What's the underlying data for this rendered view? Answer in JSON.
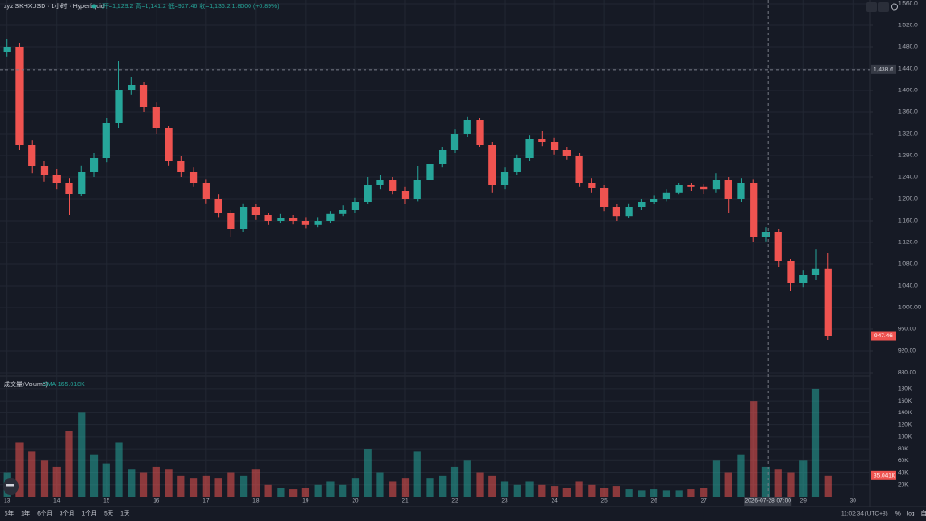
{
  "header": {
    "symbol": "xyz:SKHXUSD · 1小时 · Hyperliquid",
    "ohlc": "开=1,129.2 高=1,141.2 低=927.46 收=1,136.2 1.8000 (+0.89%)"
  },
  "toolbar": {
    "ranges": [
      "5年",
      "1年",
      "6个月",
      "3个月",
      "1个月",
      "5天",
      "1天"
    ],
    "clock": "11:02:34 (UTC+8)",
    "buttons": [
      "%",
      "log",
      "自动"
    ]
  },
  "chart_data": [
    {
      "type": "candlestick",
      "up_color": "#26a69a",
      "down_color": "#ef5350",
      "x": [
        13,
        13.25,
        13.5,
        13.75,
        14,
        14.25,
        14.5,
        14.75,
        15,
        15.25,
        15.5,
        15.75,
        16,
        16.25,
        16.5,
        16.75,
        17,
        17.25,
        17.5,
        17.75,
        18,
        18.25,
        18.5,
        18.75,
        19,
        19.25,
        19.5,
        19.75,
        20,
        20.25,
        20.5,
        20.75,
        21,
        21.25,
        21.5,
        21.75,
        22,
        22.25,
        22.5,
        22.75,
        23,
        23.25,
        23.5,
        23.75,
        24,
        24.25,
        24.5,
        24.75,
        25,
        25.25,
        25.5,
        25.75,
        26,
        26.25,
        26.5,
        26.75,
        27,
        27.25,
        27.5,
        27.75,
        28,
        28.25,
        28.5,
        28.75,
        29,
        29.25,
        29.5
      ],
      "open": [
        1470,
        1480,
        1300,
        1260,
        1245,
        1230,
        1210,
        1250,
        1275,
        1340,
        1400,
        1410,
        1370,
        1330,
        1270,
        1250,
        1230,
        1200,
        1175,
        1145,
        1185,
        1170,
        1160,
        1165,
        1160,
        1152,
        1160,
        1172,
        1180,
        1195,
        1225,
        1235,
        1215,
        1200,
        1235,
        1265,
        1290,
        1320,
        1345,
        1300,
        1225,
        1250,
        1275,
        1310,
        1305,
        1290,
        1280,
        1230,
        1220,
        1185,
        1168,
        1185,
        1195,
        1200,
        1212,
        1225,
        1222,
        1218,
        1235,
        1200,
        1230,
        1130,
        1140,
        1085,
        1045,
        1060,
        1072
      ],
      "high": [
        1495,
        1488,
        1308,
        1270,
        1255,
        1238,
        1262,
        1285,
        1350,
        1455,
        1425,
        1415,
        1378,
        1335,
        1280,
        1258,
        1236,
        1208,
        1180,
        1192,
        1190,
        1175,
        1172,
        1170,
        1166,
        1166,
        1178,
        1188,
        1202,
        1240,
        1245,
        1240,
        1222,
        1260,
        1272,
        1296,
        1328,
        1352,
        1350,
        1305,
        1258,
        1282,
        1318,
        1325,
        1312,
        1296,
        1285,
        1238,
        1225,
        1190,
        1192,
        1200,
        1206,
        1218,
        1230,
        1230,
        1228,
        1248,
        1240,
        1238,
        1236,
        1148,
        1145,
        1090,
        1068,
        1108,
        1100
      ],
      "low": [
        1462,
        1290,
        1248,
        1232,
        1218,
        1170,
        1205,
        1240,
        1268,
        1330,
        1392,
        1360,
        1320,
        1262,
        1240,
        1222,
        1192,
        1166,
        1130,
        1140,
        1162,
        1152,
        1155,
        1153,
        1146,
        1148,
        1155,
        1168,
        1175,
        1190,
        1218,
        1208,
        1190,
        1196,
        1230,
        1258,
        1285,
        1315,
        1295,
        1212,
        1218,
        1245,
        1270,
        1298,
        1282,
        1272,
        1222,
        1212,
        1178,
        1160,
        1165,
        1180,
        1190,
        1196,
        1208,
        1215,
        1210,
        1212,
        1175,
        1195,
        1120,
        1122,
        1075,
        1030,
        1038,
        1050,
        940
      ],
      "close": [
        1480,
        1300,
        1260,
        1245,
        1230,
        1210,
        1250,
        1275,
        1340,
        1400,
        1410,
        1370,
        1330,
        1270,
        1250,
        1230,
        1200,
        1175,
        1145,
        1185,
        1170,
        1160,
        1165,
        1160,
        1152,
        1160,
        1172,
        1180,
        1195,
        1225,
        1235,
        1215,
        1200,
        1235,
        1265,
        1290,
        1320,
        1345,
        1300,
        1225,
        1250,
        1275,
        1310,
        1305,
        1290,
        1280,
        1230,
        1220,
        1185,
        1168,
        1185,
        1195,
        1200,
        1212,
        1225,
        1222,
        1218,
        1235,
        1200,
        1230,
        1130,
        1140,
        1085,
        1045,
        1060,
        1072,
        947.46
      ],
      "xlim": [
        12.86,
        30.34
      ],
      "ylim": [
        880,
        1560
      ],
      "yticks": [
        {
          "value": 880,
          "label": "880.00"
        },
        {
          "value": 920,
          "label": "920.00"
        },
        {
          "value": 960,
          "label": "960.00"
        },
        {
          "value": 1000,
          "label": "1,000.00"
        },
        {
          "value": 1040,
          "label": "1,040.0"
        },
        {
          "value": 1080,
          "label": "1,080.0"
        },
        {
          "value": 1120,
          "label": "1,120.0"
        },
        {
          "value": 1160,
          "label": "1,160.0"
        },
        {
          "value": 1200,
          "label": "1,200.0"
        },
        {
          "value": 1240,
          "label": "1,240.0"
        },
        {
          "value": 1280,
          "label": "1,280.0"
        },
        {
          "value": 1320,
          "label": "1,320.0"
        },
        {
          "value": 1360,
          "label": "1,360.0"
        },
        {
          "value": 1400,
          "label": "1,400.0"
        },
        {
          "value": 1440,
          "label": "1,440.0"
        },
        {
          "value": 1480,
          "label": "1,480.0"
        },
        {
          "value": 1520,
          "label": "1,520.0"
        },
        {
          "value": 1560,
          "label": "1,560.0"
        }
      ],
      "crosshair_price": {
        "value": 1438.6,
        "label": "1,438.6"
      },
      "last_price": {
        "value": 947.46,
        "label": "947.46"
      }
    },
    {
      "type": "bar",
      "title": "成交量(Volume)",
      "subtitle": "SMA 165.018K",
      "x": [
        13,
        13.25,
        13.5,
        13.75,
        14,
        14.25,
        14.5,
        14.75,
        15,
        15.25,
        15.5,
        15.75,
        16,
        16.25,
        16.5,
        16.75,
        17,
        17.25,
        17.5,
        17.75,
        18,
        18.25,
        18.5,
        18.75,
        19,
        19.25,
        19.5,
        19.75,
        20,
        20.25,
        20.5,
        20.75,
        21,
        21.25,
        21.5,
        21.75,
        22,
        22.25,
        22.5,
        22.75,
        23,
        23.25,
        23.5,
        23.75,
        24,
        24.25,
        24.5,
        24.75,
        25,
        25.25,
        25.5,
        25.75,
        26,
        26.25,
        26.5,
        26.75,
        27,
        27.25,
        27.5,
        27.75,
        28,
        28.25,
        28.5,
        28.75,
        29,
        29.25,
        29.5
      ],
      "values": [
        40000,
        90000,
        75000,
        60000,
        50000,
        110000,
        140000,
        70000,
        55000,
        90000,
        45000,
        40000,
        50000,
        45000,
        35000,
        30000,
        35000,
        30000,
        40000,
        35000,
        45000,
        20000,
        15000,
        12000,
        15000,
        20000,
        25000,
        20000,
        30000,
        80000,
        40000,
        25000,
        30000,
        75000,
        30000,
        35000,
        50000,
        60000,
        40000,
        35000,
        25000,
        20000,
        25000,
        20000,
        18000,
        15000,
        25000,
        20000,
        15000,
        18000,
        12000,
        10000,
        12000,
        10000,
        10000,
        12000,
        15000,
        60000,
        40000,
        70000,
        160000,
        50000,
        45000,
        40000,
        60000,
        180000,
        35041
      ],
      "xlim": [
        12.86,
        30.34
      ],
      "ylim": [
        0,
        195000
      ],
      "xticks": [
        13,
        14,
        15,
        16,
        17,
        18,
        19,
        20,
        21,
        22,
        23,
        24,
        25,
        26,
        27,
        28,
        29,
        30
      ],
      "yticks": [
        {
          "value": 20000,
          "label": "20K"
        },
        {
          "value": 40000,
          "label": "40K"
        },
        {
          "value": 60000,
          "label": "60K"
        },
        {
          "value": 80000,
          "label": "80K"
        },
        {
          "value": 100000,
          "label": "100K"
        },
        {
          "value": 120000,
          "label": "120K"
        },
        {
          "value": 140000,
          "label": "140K"
        },
        {
          "value": 160000,
          "label": "160K"
        },
        {
          "value": 180000,
          "label": "180K"
        }
      ],
      "last_value": {
        "value": 35041,
        "label": "35.041K"
      },
      "crosshair_time": {
        "value": 28.29,
        "label": "2026-07-28 07:00"
      }
    }
  ]
}
